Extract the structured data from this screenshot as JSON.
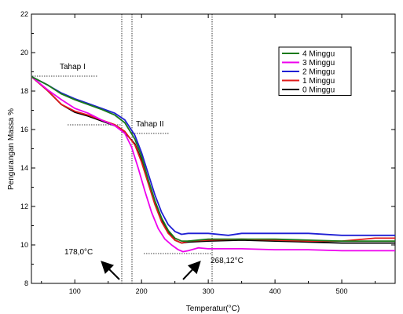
{
  "chart_data": {
    "type": "line",
    "xlabel": "Temperatur(°C)",
    "ylabel": "Pengurangan Massa %",
    "xlim": [
      35,
      580
    ],
    "ylim": [
      8,
      22
    ],
    "xticks": [
      100,
      200,
      300,
      400,
      500
    ],
    "yticks": [
      8,
      10,
      12,
      14,
      16,
      18,
      20,
      22
    ],
    "x_tick_labels": [
      "100",
      "200",
      "300",
      "400",
      "500"
    ],
    "y_tick_labels": [
      "8",
      "10",
      "12",
      "14",
      "16",
      "18",
      "20",
      "22"
    ],
    "grid": false,
    "legend_position": "top-right",
    "series": [
      {
        "name": "4 Minggu",
        "color": "#1a7a1a",
        "x": [
          35,
          60,
          80,
          100,
          120,
          140,
          160,
          175,
          190,
          200,
          210,
          220,
          230,
          240,
          250,
          260,
          270,
          300,
          350,
          400,
          450,
          500,
          550,
          580
        ],
        "y": [
          18.75,
          18.3,
          17.85,
          17.55,
          17.3,
          17.05,
          16.75,
          16.35,
          15.5,
          14.6,
          13.4,
          12.3,
          11.4,
          10.75,
          10.35,
          10.2,
          10.2,
          10.3,
          10.3,
          10.3,
          10.25,
          10.2,
          10.2,
          10.2
        ]
      },
      {
        "name": "3 Minggu",
        "color": "#ee00ee",
        "x": [
          35,
          60,
          80,
          100,
          120,
          140,
          160,
          175,
          185,
          195,
          205,
          215,
          225,
          235,
          245,
          255,
          262,
          270,
          285,
          300,
          350,
          400,
          450,
          500,
          550,
          580
        ],
        "y": [
          18.75,
          18.05,
          17.55,
          17.1,
          16.85,
          16.5,
          16.2,
          15.8,
          15.1,
          14.0,
          12.8,
          11.7,
          10.85,
          10.3,
          10.0,
          9.75,
          9.65,
          9.7,
          9.85,
          9.8,
          9.8,
          9.75,
          9.75,
          9.7,
          9.7,
          9.7
        ]
      },
      {
        "name": "2 Minggu",
        "color": "#1f1fd4",
        "x": [
          35,
          60,
          80,
          100,
          120,
          140,
          160,
          175,
          190,
          200,
          210,
          220,
          230,
          240,
          250,
          260,
          270,
          300,
          330,
          350,
          400,
          450,
          500,
          550,
          580
        ],
        "y": [
          18.75,
          18.3,
          17.9,
          17.6,
          17.35,
          17.1,
          16.85,
          16.5,
          15.7,
          14.8,
          13.7,
          12.6,
          11.7,
          11.05,
          10.7,
          10.55,
          10.6,
          10.6,
          10.5,
          10.6,
          10.6,
          10.6,
          10.5,
          10.5,
          10.5
        ]
      },
      {
        "name": "1 Minggu",
        "color": "#e01a1a",
        "x": [
          35,
          60,
          80,
          100,
          120,
          140,
          160,
          175,
          190,
          200,
          210,
          220,
          230,
          240,
          250,
          260,
          270,
          300,
          350,
          400,
          450,
          500,
          550,
          580
        ],
        "y": [
          18.75,
          18.0,
          17.3,
          16.95,
          16.75,
          16.5,
          16.25,
          15.9,
          15.2,
          14.3,
          13.2,
          12.1,
          11.2,
          10.6,
          10.25,
          10.1,
          10.2,
          10.25,
          10.3,
          10.25,
          10.2,
          10.2,
          10.35,
          10.35
        ]
      },
      {
        "name": "0 Minggu",
        "color": "#000000",
        "x": [
          35,
          60,
          80,
          100,
          120,
          140,
          160,
          175,
          190,
          200,
          210,
          220,
          230,
          240,
          250,
          260,
          270,
          300,
          350,
          400,
          450,
          500,
          550,
          580
        ],
        "y": [
          18.75,
          18.0,
          17.3,
          16.9,
          16.7,
          16.45,
          16.2,
          15.85,
          15.25,
          14.4,
          13.3,
          12.2,
          11.3,
          10.65,
          10.25,
          10.1,
          10.15,
          10.2,
          10.25,
          10.2,
          10.15,
          10.1,
          10.1,
          10.1
        ]
      }
    ],
    "annotations": [
      {
        "text": "Tahap I"
      },
      {
        "text": "Tahap II"
      },
      {
        "text": "178,0°C",
        "x": 178
      },
      {
        "text": "268,12°C",
        "x": 268
      }
    ]
  }
}
